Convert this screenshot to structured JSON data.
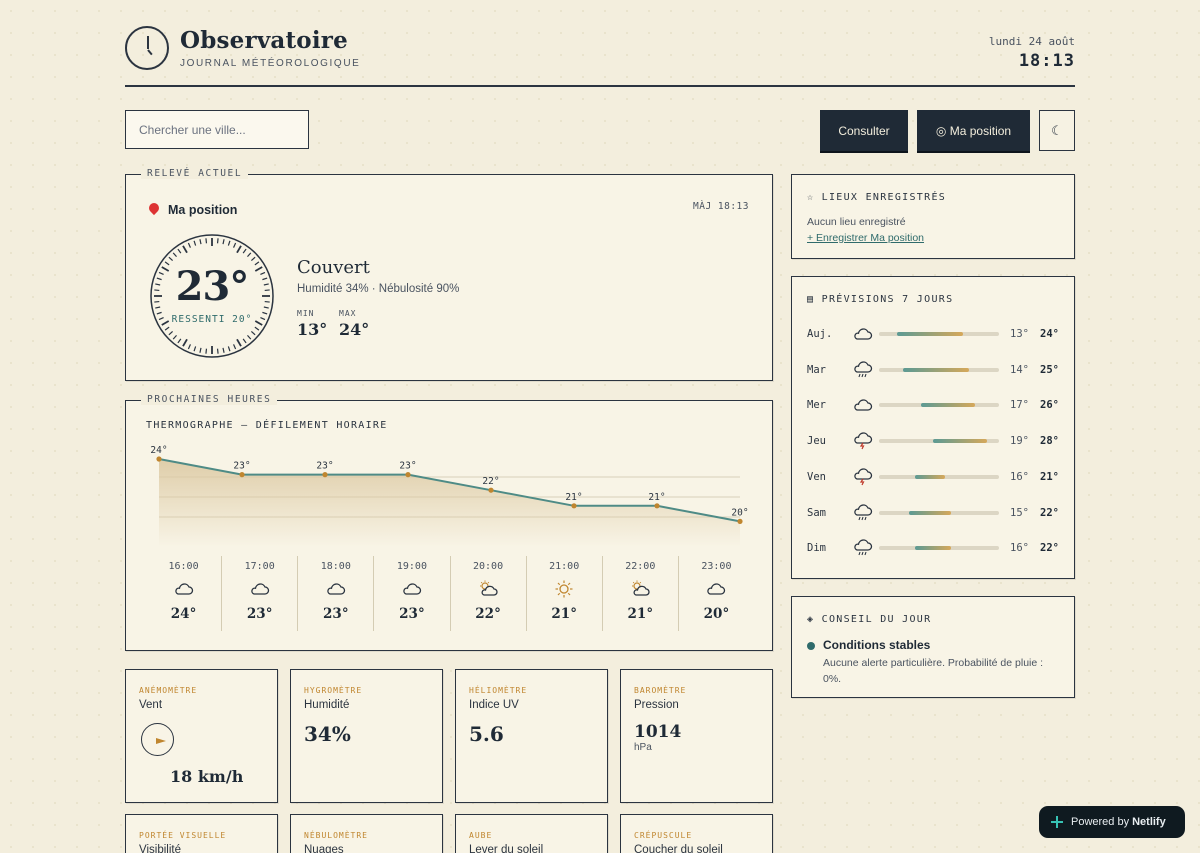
{
  "header": {
    "title": "Observatoire",
    "subtitle": "JOURNAL MÉTÉOROLOGIQUE",
    "date": "lundi 24 août",
    "time": "18:13"
  },
  "toolbar": {
    "search_placeholder": "Chercher une ville...",
    "consult_label": "Consulter",
    "position_label": "◎ Ma position",
    "theme_label": "☾"
  },
  "current": {
    "legend": "RELEVÉ ACTUEL",
    "location": "Ma position",
    "updated": "MÀJ 18:13",
    "temp": "23°",
    "feels": "RESSENTI 20°",
    "condition": "Couvert",
    "details": "Humidité 34% · Nébulosité 90%",
    "min_label": "MIN",
    "min": "13°",
    "max_label": "MAX",
    "max": "24°"
  },
  "hourly": {
    "legend": "PROCHAINES HEURES",
    "title": "THERMOGRAPHE — DÉFILEMENT HORAIRE",
    "items": [
      {
        "time": "16:00",
        "temp": "24°",
        "icon": "cloud-icon"
      },
      {
        "time": "17:00",
        "temp": "23°",
        "icon": "cloud-icon"
      },
      {
        "time": "18:00",
        "temp": "23°",
        "icon": "cloud-icon"
      },
      {
        "time": "19:00",
        "temp": "23°",
        "icon": "cloud-icon"
      },
      {
        "time": "20:00",
        "temp": "22°",
        "icon": "sun-cloud-icon"
      },
      {
        "time": "21:00",
        "temp": "21°",
        "icon": "sun-icon"
      },
      {
        "time": "22:00",
        "temp": "21°",
        "icon": "sun-cloud-icon"
      },
      {
        "time": "23:00",
        "temp": "20°",
        "icon": "cloud-icon"
      }
    ]
  },
  "chart_data": {
    "type": "area",
    "x": [
      "16:00",
      "17:00",
      "18:00",
      "19:00",
      "20:00",
      "21:00",
      "22:00",
      "23:00"
    ],
    "series": [
      {
        "values": [
          24,
          23,
          23,
          23,
          22,
          21,
          21,
          20
        ]
      }
    ],
    "point_labels": [
      "24°",
      "23°",
      "23°",
      "23°",
      "22°",
      "21°",
      "21°",
      "20°"
    ],
    "ylim": [
      19,
      24
    ],
    "grid": true,
    "colors": {
      "line": "#4e8b86",
      "point": "#c0862f",
      "fill": "#dcc9a2"
    }
  },
  "cards": [
    {
      "label": "ANÉMOMÈTRE",
      "name": "Vent",
      "value": "18 km/h",
      "icon": "compass-icon"
    },
    {
      "label": "HYGROMÈTRE",
      "name": "Humidité",
      "value": "34%"
    },
    {
      "label": "HÉLIOMÈTRE",
      "name": "Indice UV",
      "value": "5.6"
    },
    {
      "label": "BAROMÈTRE",
      "name": "Pression",
      "value": "1014",
      "unit": "hPa"
    },
    {
      "label": "PORTÉE VISUELLE",
      "name": "Visibilité"
    },
    {
      "label": "NÉBULOMÈTRE",
      "name": "Nuages"
    },
    {
      "label": "AUBE",
      "name": "Lever du soleil"
    },
    {
      "label": "CRÉPUSCULE",
      "name": "Coucher du soleil"
    }
  ],
  "saved": {
    "title": "☆ LIEUX ENREGISTRÉS",
    "empty": "Aucun lieu enregistré",
    "link": "+ Enregistrer Ma position"
  },
  "forecast": {
    "title": "▤ PRÉVISIONS 7 JOURS",
    "scale": [
      10,
      30
    ],
    "days": [
      {
        "day": "Auj.",
        "icon": "cloud-icon",
        "min": "13°",
        "max": "24°",
        "min_value": 13,
        "max_value": 24
      },
      {
        "day": "Mar",
        "icon": "rain-icon",
        "min": "14°",
        "max": "25°",
        "min_value": 14,
        "max_value": 25
      },
      {
        "day": "Mer",
        "icon": "cloud-icon",
        "min": "17°",
        "max": "26°",
        "min_value": 17,
        "max_value": 26
      },
      {
        "day": "Jeu",
        "icon": "storm-icon",
        "min": "19°",
        "max": "28°",
        "min_value": 19,
        "max_value": 28
      },
      {
        "day": "Ven",
        "icon": "storm-icon",
        "min": "16°",
        "max": "21°",
        "min_value": 16,
        "max_value": 21
      },
      {
        "day": "Sam",
        "icon": "rain-icon",
        "min": "15°",
        "max": "22°",
        "min_value": 15,
        "max_value": 22
      },
      {
        "day": "Dim",
        "icon": "rain-icon",
        "min": "16°",
        "max": "22°",
        "min_value": 16,
        "max_value": 22
      }
    ]
  },
  "advice": {
    "title": "◈ CONSEIL DU JOUR",
    "headline": "Conditions stables",
    "text": "Aucune alerte particulière. Probabilité de pluie : 0%."
  },
  "footer": {
    "powered": "Powered by",
    "brand": "Netlify"
  }
}
